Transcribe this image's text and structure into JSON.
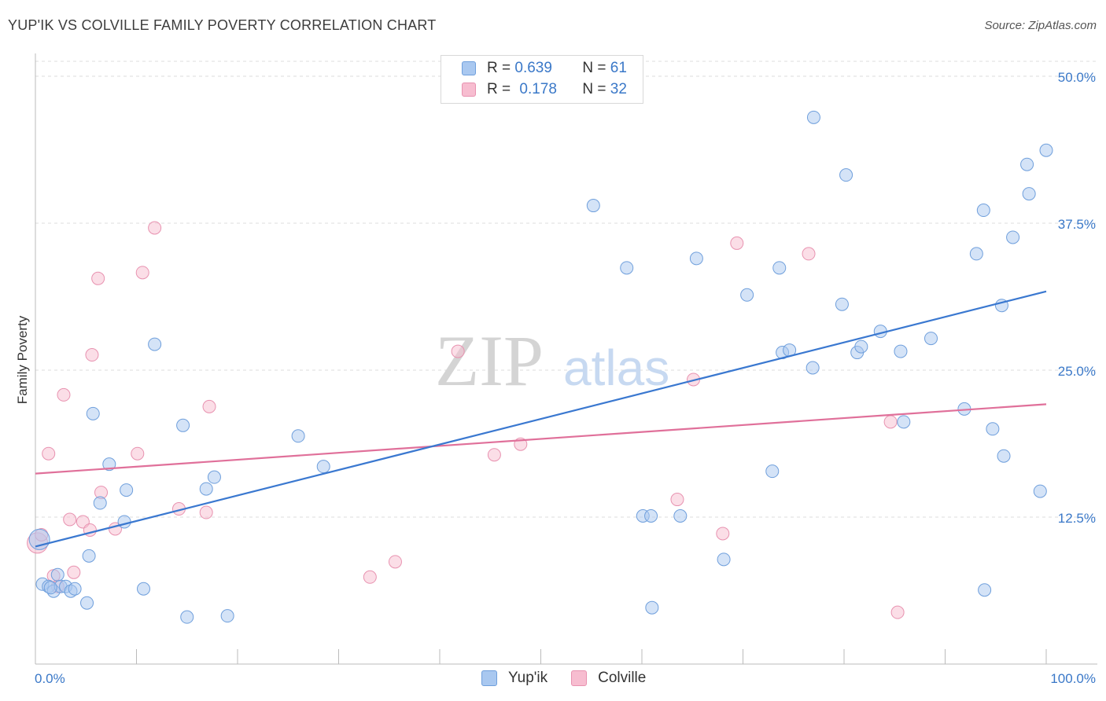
{
  "header": {
    "title": "YUP'IK VS COLVILLE FAMILY POVERTY CORRELATION CHART",
    "source": "Source: ZipAtlas.com"
  },
  "watermark": {
    "zip": "ZIP",
    "atlas": "atlas"
  },
  "legend_top": {
    "rows": [
      {
        "r_label": "R = ",
        "r_value": "0.639",
        "n_label": "N = ",
        "n_value": "61"
      },
      {
        "r_label": "R = ",
        "r_value": "0.178",
        "n_label": "N = ",
        "n_value": "32"
      }
    ]
  },
  "colors": {
    "yupik_fill": "#a9c8f0",
    "yupik_stroke": "#6f9fdc",
    "yupik_line": "#3a78d0",
    "colville_fill": "#f7bdd0",
    "colville_stroke": "#e892b0",
    "colville_line": "#e0709a",
    "grid": "#dcdcdc",
    "tick_label": "#3a78c8"
  },
  "chart_data": {
    "type": "scatter",
    "title": "YUP'IK VS COLVILLE FAMILY POVERTY CORRELATION CHART",
    "xlabel": "",
    "ylabel": "Family Poverty",
    "xlim": [
      0,
      100
    ],
    "ylim": [
      0,
      52
    ],
    "x_tick_labels": [
      "0.0%",
      "100.0%"
    ],
    "y_ticks": [
      12.5,
      25.0,
      37.5,
      50.0
    ],
    "y_tick_labels": [
      "12.5%",
      "25.0%",
      "37.5%",
      "50.0%"
    ],
    "grid": true,
    "legend_position": "bottom",
    "series": [
      {
        "name": "Yup'ik",
        "R": 0.639,
        "N": 61,
        "trend": {
          "x": [
            0,
            100
          ],
          "y": [
            10.0,
            31.7
          ]
        },
        "points": [
          [
            0.4,
            10.6
          ],
          [
            0.7,
            6.8
          ],
          [
            1.3,
            6.6
          ],
          [
            1.8,
            6.2
          ],
          [
            2.2,
            7.6
          ],
          [
            2.5,
            6.6
          ],
          [
            3.0,
            6.6
          ],
          [
            3.5,
            6.2
          ],
          [
            3.9,
            6.4
          ],
          [
            5.1,
            5.2
          ],
          [
            5.3,
            9.2
          ],
          [
            5.7,
            21.3
          ],
          [
            6.4,
            13.7
          ],
          [
            7.3,
            17.0
          ],
          [
            9.0,
            14.8
          ],
          [
            8.8,
            12.1
          ],
          [
            10.7,
            6.4
          ],
          [
            11.8,
            27.2
          ],
          [
            14.6,
            20.3
          ],
          [
            15.0,
            4.0
          ],
          [
            16.9,
            14.9
          ],
          [
            17.7,
            15.9
          ],
          [
            19.0,
            4.1
          ],
          [
            26.0,
            19.4
          ],
          [
            28.5,
            16.8
          ],
          [
            55.2,
            39.0
          ],
          [
            58.5,
            33.7
          ],
          [
            60.1,
            12.6
          ],
          [
            60.9,
            12.6
          ],
          [
            61.0,
            4.8
          ],
          [
            63.8,
            12.6
          ],
          [
            65.4,
            34.5
          ],
          [
            68.1,
            8.9
          ],
          [
            70.4,
            31.4
          ],
          [
            72.9,
            16.4
          ],
          [
            73.6,
            33.7
          ],
          [
            73.9,
            26.5
          ],
          [
            74.6,
            26.7
          ],
          [
            76.9,
            25.2
          ],
          [
            77.0,
            46.5
          ],
          [
            79.8,
            30.6
          ],
          [
            80.2,
            41.6
          ],
          [
            81.3,
            26.5
          ],
          [
            81.7,
            27.0
          ],
          [
            83.6,
            28.3
          ],
          [
            85.6,
            26.6
          ],
          [
            85.9,
            20.6
          ],
          [
            88.6,
            27.7
          ],
          [
            91.9,
            21.7
          ],
          [
            93.1,
            34.9
          ],
          [
            93.8,
            38.6
          ],
          [
            93.9,
            6.3
          ],
          [
            94.7,
            20.0
          ],
          [
            95.6,
            30.5
          ],
          [
            95.8,
            17.7
          ],
          [
            96.7,
            36.3
          ],
          [
            98.1,
            42.5
          ],
          [
            98.3,
            40.0
          ],
          [
            99.4,
            14.7
          ],
          [
            100.0,
            43.7
          ],
          [
            1.5,
            6.5
          ]
        ]
      },
      {
        "name": "Colville",
        "R": 0.178,
        "N": 32,
        "trend": {
          "x": [
            0,
            100
          ],
          "y": [
            16.2,
            22.1
          ]
        },
        "points": [
          [
            0.2,
            10.3
          ],
          [
            0.6,
            11.0
          ],
          [
            1.3,
            17.9
          ],
          [
            1.8,
            7.5
          ],
          [
            2.2,
            6.6
          ],
          [
            2.8,
            22.9
          ],
          [
            3.4,
            12.3
          ],
          [
            3.8,
            7.8
          ],
          [
            4.7,
            12.1
          ],
          [
            5.4,
            11.4
          ],
          [
            5.6,
            26.3
          ],
          [
            6.2,
            32.8
          ],
          [
            6.5,
            14.6
          ],
          [
            7.9,
            11.5
          ],
          [
            10.1,
            17.9
          ],
          [
            10.6,
            33.3
          ],
          [
            11.8,
            37.1
          ],
          [
            14.2,
            13.2
          ],
          [
            16.9,
            12.9
          ],
          [
            17.2,
            21.9
          ],
          [
            33.1,
            7.4
          ],
          [
            35.6,
            8.7
          ],
          [
            41.8,
            26.6
          ],
          [
            45.4,
            17.8
          ],
          [
            48.0,
            18.7
          ],
          [
            63.5,
            14.0
          ],
          [
            65.1,
            24.2
          ],
          [
            68.0,
            11.1
          ],
          [
            69.4,
            35.8
          ],
          [
            76.5,
            34.9
          ],
          [
            84.6,
            20.6
          ],
          [
            85.3,
            4.4
          ]
        ]
      }
    ]
  }
}
